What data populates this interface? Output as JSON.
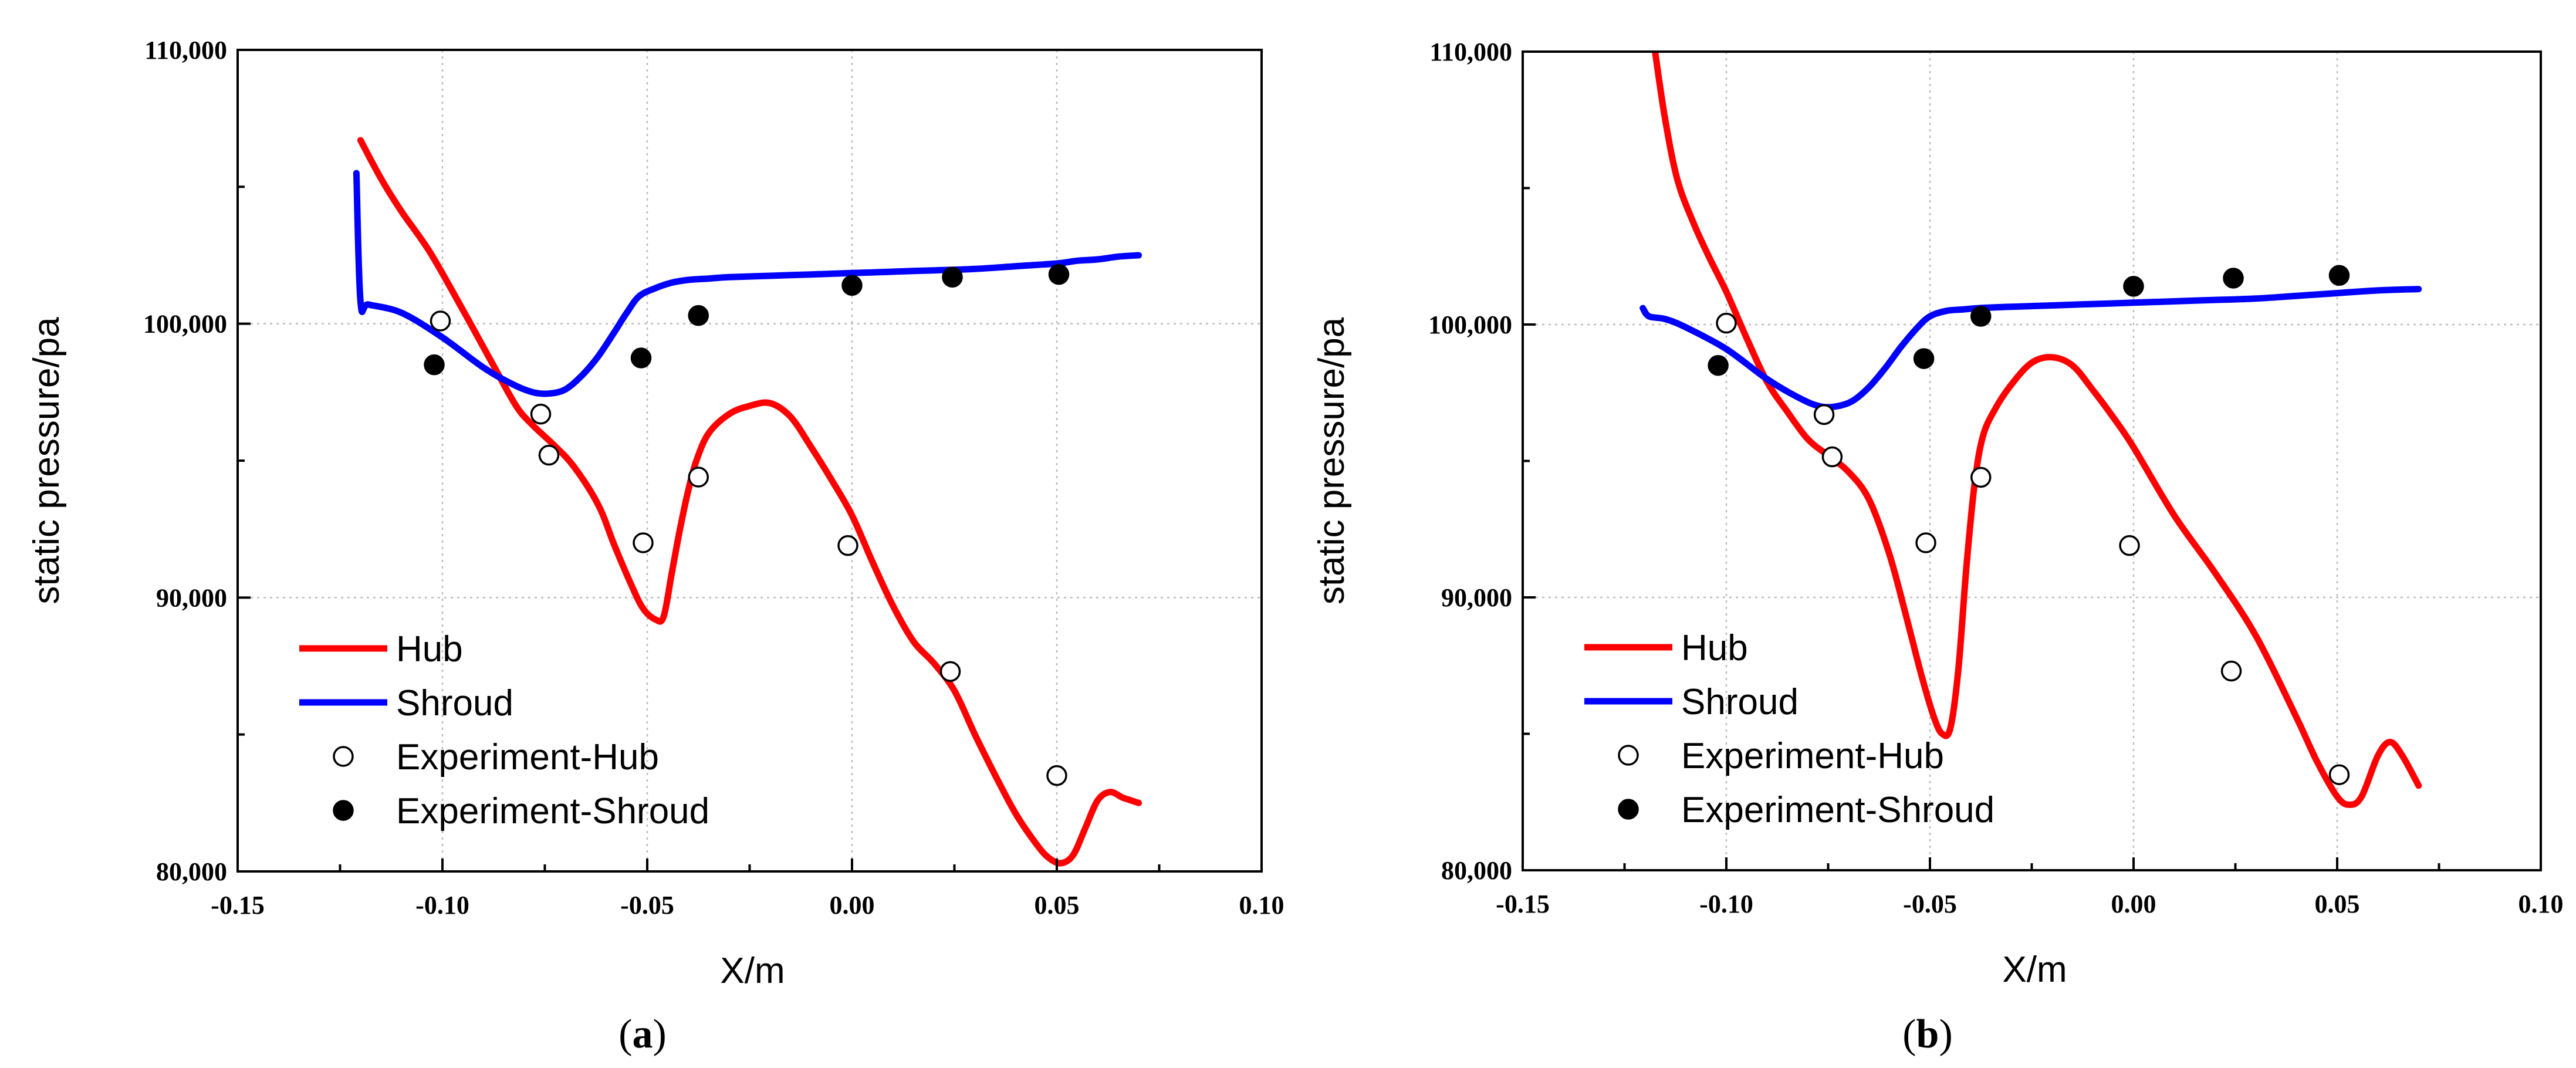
{
  "chart_data": [
    {
      "type": "line",
      "panel": "a",
      "caption": {
        "open": "(",
        "letter": "a",
        "close": ")"
      },
      "xlabel": "X/m",
      "ylabel": "static pressure/pa",
      "xlim": [
        -0.15,
        0.1
      ],
      "ylim": [
        80000,
        110000
      ],
      "x_ticks": [
        -0.15,
        -0.1,
        -0.05,
        0.0,
        0.05,
        0.1
      ],
      "x_tick_labels": [
        "-0.15",
        "-0.10",
        "-0.05",
        "0.00",
        "0.05",
        "0.10"
      ],
      "y_ticks": [
        80000,
        90000,
        100000,
        110000
      ],
      "y_tick_labels": [
        "80,000",
        "90,000",
        "100,000",
        "110,000"
      ],
      "grid": true,
      "legend_position": "bottom-left",
      "series": [
        {
          "name": "Hub",
          "style": "line",
          "color": "#ff0000",
          "x": [
            -0.12,
            -0.115,
            -0.11,
            -0.103,
            -0.095,
            -0.088,
            -0.082,
            -0.078,
            -0.073,
            -0.068,
            -0.062,
            -0.058,
            -0.054,
            -0.051,
            -0.048,
            -0.046,
            -0.044,
            -0.042,
            -0.04,
            -0.038,
            -0.035,
            -0.03,
            -0.025,
            -0.02,
            -0.015,
            -0.01,
            -0.005,
            0.0,
            0.005,
            0.01,
            0.015,
            0.02,
            0.025,
            0.03,
            0.035,
            0.04,
            0.045,
            0.048,
            0.051,
            0.054,
            0.057,
            0.06,
            0.063,
            0.066,
            0.068,
            0.07
          ],
          "y": [
            106700,
            105300,
            104100,
            102600,
            100500,
            98600,
            97000,
            96300,
            95600,
            94800,
            93400,
            91900,
            90500,
            89600,
            89200,
            89300,
            90900,
            92500,
            93900,
            95000,
            96000,
            96700,
            97000,
            97100,
            96600,
            95500,
            94300,
            93000,
            91300,
            89700,
            88400,
            87600,
            86600,
            85000,
            83500,
            82100,
            81000,
            80500,
            80300,
            80600,
            81600,
            82600,
            82900,
            82700,
            82600,
            82500
          ]
        },
        {
          "name": "Shroud",
          "style": "line",
          "color": "#0000ff",
          "x": [
            -0.121,
            -0.12,
            -0.118,
            -0.11,
            -0.1,
            -0.09,
            -0.083,
            -0.078,
            -0.074,
            -0.07,
            -0.066,
            -0.062,
            -0.058,
            -0.055,
            -0.052,
            -0.048,
            -0.044,
            -0.04,
            -0.035,
            -0.03,
            -0.02,
            -0.01,
            0.0,
            0.01,
            0.02,
            0.03,
            0.04,
            0.05,
            0.055,
            0.06,
            0.065,
            0.07
          ],
          "y": [
            105500,
            100800,
            100700,
            100400,
            99500,
            98400,
            97800,
            97500,
            97450,
            97600,
            98100,
            98800,
            99700,
            100400,
            101000,
            101300,
            101500,
            101600,
            101650,
            101700,
            101750,
            101800,
            101850,
            101900,
            101950,
            102000,
            102100,
            102200,
            102300,
            102350,
            102450,
            102500
          ]
        },
        {
          "name": "Experiment-Hub",
          "style": "open-circle",
          "color": "#000000",
          "x": [
            -0.1005,
            -0.076,
            -0.074,
            -0.051,
            -0.0375,
            -0.001,
            0.024,
            0.05
          ],
          "y": [
            100100,
            96700,
            95200,
            92000,
            94400,
            91900,
            87300,
            83500
          ]
        },
        {
          "name": "Experiment-Shroud",
          "style": "filled-circle",
          "color": "#000000",
          "x": [
            -0.102,
            -0.0515,
            -0.0375,
            0.0,
            0.0245,
            0.0505
          ],
          "y": [
            98500,
            98750,
            100300,
            101400,
            101700,
            101800
          ]
        }
      ]
    },
    {
      "type": "line",
      "panel": "b",
      "caption": {
        "open": "(",
        "letter": "b",
        "close": ")"
      },
      "xlabel": "X/m",
      "ylabel": "static pressure/pa",
      "xlim": [
        -0.15,
        0.1
      ],
      "ylim": [
        80000,
        110000
      ],
      "x_ticks": [
        -0.15,
        -0.1,
        -0.05,
        0.0,
        0.05,
        0.1
      ],
      "x_tick_labels": [
        "-0.15",
        "-0.10",
        "-0.05",
        "0.00",
        "0.05",
        "0.10"
      ],
      "y_ticks": [
        80000,
        90000,
        100000,
        110000
      ],
      "y_tick_labels": [
        "80,000",
        "90,000",
        "100,000",
        "110,000"
      ],
      "grid": true,
      "legend_position": "bottom-left",
      "series": [
        {
          "name": "Hub",
          "style": "line",
          "color": "#ff0000",
          "x": [
            -0.1175,
            -0.115,
            -0.112,
            -0.108,
            -0.104,
            -0.1,
            -0.095,
            -0.09,
            -0.085,
            -0.08,
            -0.075,
            -0.07,
            -0.065,
            -0.06,
            -0.056,
            -0.052,
            -0.049,
            -0.047,
            -0.045,
            -0.043,
            -0.041,
            -0.039,
            -0.037,
            -0.034,
            -0.03,
            -0.025,
            -0.02,
            -0.015,
            -0.01,
            -0.005,
            0.0,
            0.01,
            0.02,
            0.03,
            0.04,
            0.045,
            0.05,
            0.053,
            0.056,
            0.06,
            0.063,
            0.066,
            0.07
          ],
          "y": [
            110000,
            107500,
            105300,
            103700,
            102400,
            101200,
            99500,
            97900,
            96800,
            95800,
            95200,
            94600,
            93600,
            91600,
            89400,
            87100,
            85600,
            85000,
            85200,
            87400,
            91200,
            94200,
            95900,
            96900,
            97800,
            98600,
            98800,
            98500,
            97600,
            96600,
            95500,
            93000,
            90900,
            88600,
            85600,
            84000,
            82700,
            82400,
            82700,
            84200,
            84700,
            84200,
            83100
          ]
        },
        {
          "name": "Shroud",
          "style": "line",
          "color": "#0000ff",
          "x": [
            -0.1205,
            -0.119,
            -0.115,
            -0.11,
            -0.1,
            -0.09,
            -0.082,
            -0.077,
            -0.073,
            -0.069,
            -0.065,
            -0.061,
            -0.057,
            -0.053,
            -0.05,
            -0.046,
            -0.042,
            -0.038,
            -0.03,
            -0.02,
            -0.01,
            0.0,
            0.01,
            0.02,
            0.03,
            0.04,
            0.05,
            0.06,
            0.07
          ],
          "y": [
            100600,
            100300,
            100200,
            99900,
            99100,
            98000,
            97300,
            97000,
            97000,
            97200,
            97700,
            98400,
            99200,
            99900,
            100300,
            100500,
            100550,
            100600,
            100650,
            100700,
            100750,
            100800,
            100850,
            100900,
            100950,
            101050,
            101150,
            101250,
            101300
          ]
        },
        {
          "name": "Experiment-Hub",
          "style": "open-circle",
          "color": "#000000",
          "x": [
            -0.1,
            -0.076,
            -0.074,
            -0.051,
            -0.0375,
            -0.001,
            0.024,
            0.0505
          ],
          "y": [
            100050,
            96700,
            95150,
            92000,
            94400,
            91900,
            87300,
            83500
          ]
        },
        {
          "name": "Experiment-Shroud",
          "style": "filled-circle",
          "color": "#000000",
          "x": [
            -0.102,
            -0.0515,
            -0.0375,
            0.0,
            0.0245,
            0.0505
          ],
          "y": [
            98500,
            98750,
            100300,
            101400,
            101700,
            101800
          ]
        }
      ]
    }
  ]
}
